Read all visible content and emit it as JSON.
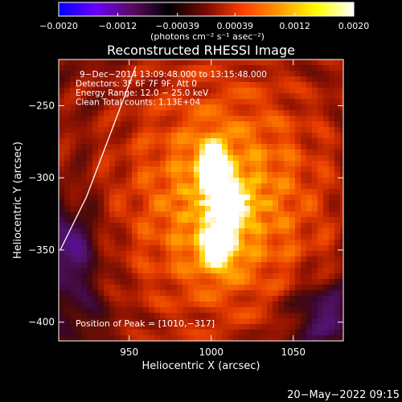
{
  "chart_data": {
    "type": "heatmap",
    "title": "Reconstructed RHESSI Image",
    "xlabel": "Heliocentric X (arcsec)",
    "ylabel": "Heliocentric Y (arcsec)",
    "xlim": [
      907,
      1003
    ],
    "ylim": [
      -413,
      -218
    ],
    "x_ticks": [
      {
        "value": 950,
        "label": "950"
      },
      {
        "value": 1000,
        "label": "1000"
      },
      {
        "value": 1050,
        "label": "1050"
      }
    ],
    "y_ticks": [
      {
        "value": -250,
        "label": "−250"
      },
      {
        "value": -300,
        "label": "−300"
      },
      {
        "value": -350,
        "label": "−350"
      },
      {
        "value": -400,
        "label": "−400"
      }
    ],
    "colorbar": {
      "min": -0.002,
      "max": 0.002,
      "unit_label": "(photons cm⁻² s⁻¹ asec⁻²)",
      "ticks": [
        {
          "value": -0.002,
          "label": "−0.0020"
        },
        {
          "value": -0.0012,
          "label": "−0.0012"
        },
        {
          "value": -0.00039,
          "label": "−0.00039"
        },
        {
          "value": 0.00039,
          "label": "0.00039"
        },
        {
          "value": 0.0012,
          "label": "0.0012"
        },
        {
          "value": 0.002,
          "label": "0.0020"
        }
      ],
      "colormap": [
        "#0000ff",
        "#6a00ff",
        "#5a0a60",
        "#000000",
        "#7a0a00",
        "#ff4000",
        "#ff9a00",
        "#ffff00",
        "#ffffff"
      ]
    },
    "annotations": [
      "9−Dec−2014 13:09:48.000 to 13:15:48.000",
      "Detectors: 3F 6F 7F 9F, Att 0",
      "Energy Range: 12.0 − 25.0 keV",
      "Clean    Total counts: 1.13E+04"
    ],
    "peak_label": "Position of Peak = [1010,−317]",
    "peak": {
      "x": 1010,
      "y": -317
    },
    "sources": [
      {
        "x": 1010,
        "y": -318,
        "amplitude": 0.002,
        "sigma_x": 7,
        "sigma_y": 10
      },
      {
        "x": 1001,
        "y": -292,
        "amplitude": 0.0016,
        "sigma_x": 6,
        "sigma_y": 12
      },
      {
        "x": 1004,
        "y": -348,
        "amplitude": 0.0012,
        "sigma_x": 8,
        "sigma_y": 12
      },
      {
        "x": 1008,
        "y": -315,
        "amplitude": 0.0011,
        "sigma_x": 42,
        "sigma_y": 58
      }
    ],
    "limb_curve": [
      {
        "x": 954,
        "y": -223
      },
      {
        "x": 945,
        "y": -250
      },
      {
        "x": 935,
        "y": -280
      },
      {
        "x": 924,
        "y": -313
      },
      {
        "x": 908,
        "y": -350
      }
    ],
    "footer_timestamp": "20−May−2022 09:15"
  }
}
